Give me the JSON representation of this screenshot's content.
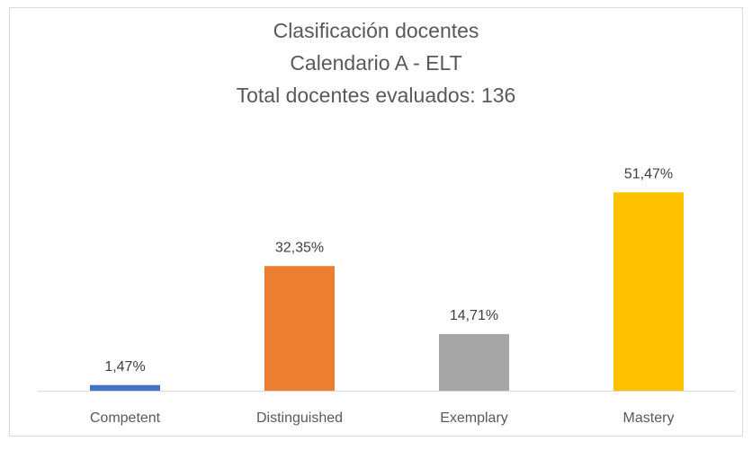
{
  "chart_data": {
    "type": "bar",
    "title": "Clasificación docentes",
    "subtitle": [
      "Calendario A - ELT",
      "Total docentes evaluados: 136"
    ],
    "categories": [
      "Competent",
      "Distinguished",
      "Exemplary",
      "Mastery"
    ],
    "values": [
      1.47,
      32.35,
      14.71,
      51.47
    ],
    "value_labels": [
      "1,47%",
      "32,35%",
      "14,71%",
      "51,47%"
    ],
    "colors": [
      "#4472c4",
      "#ed7d31",
      "#a5a5a5",
      "#ffc000"
    ]
  }
}
